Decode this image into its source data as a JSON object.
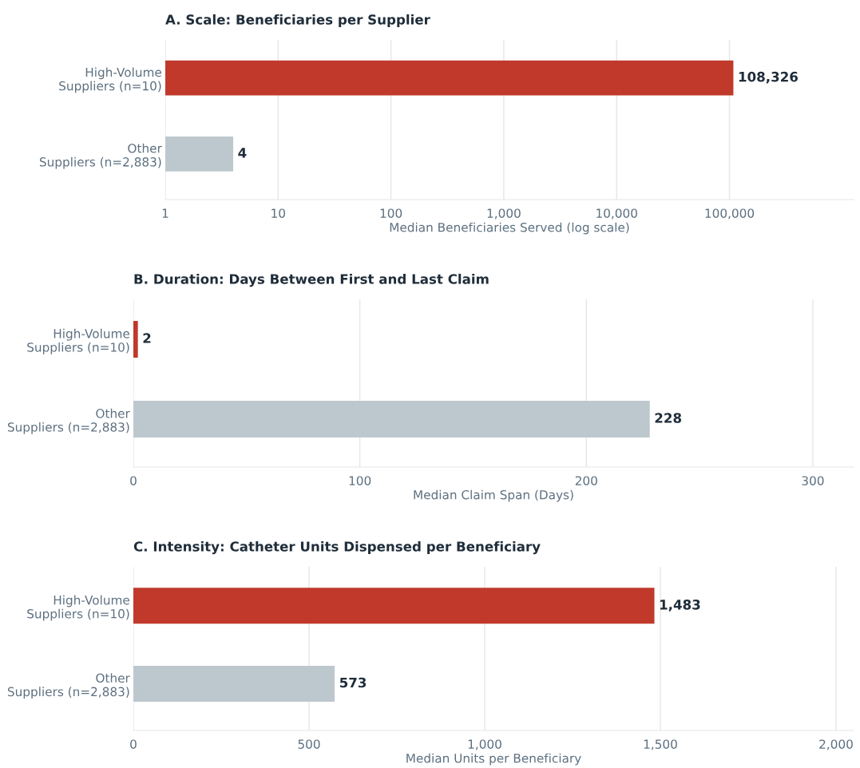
{
  "chart_data": [
    {
      "type": "bar",
      "orientation": "horizontal",
      "log": "x",
      "title": "A. Scale: Beneficiaries per Supplier",
      "xlabel": "Median Beneficiaries Served (log scale)",
      "categories": [
        "High-Volume\nSuppliers (n=10)",
        "Other\nSuppliers (n=2,883)"
      ],
      "values": [
        108326,
        4
      ],
      "colors": [
        "#c0392b",
        "#bdc8ce"
      ],
      "value_labels": [
        "108,326",
        "4"
      ],
      "xlim": [
        1,
        1260000
      ],
      "xticks": [
        {
          "value": 1,
          "label": "1"
        },
        {
          "value": 10,
          "label": "10"
        },
        {
          "value": 100,
          "label": "100"
        },
        {
          "value": 1000,
          "label": "1,000"
        },
        {
          "value": 10000,
          "label": "10,000"
        },
        {
          "value": 100000,
          "label": "100,000"
        }
      ],
      "grid": "x",
      "legend": false
    },
    {
      "type": "bar",
      "orientation": "horizontal",
      "title": "B. Duration: Days Between First and Last Claim",
      "xlabel": "Median Claim Span (Days)",
      "categories": [
        "High-Volume\nSuppliers (n=10)",
        "Other\nSuppliers (n=2,883)"
      ],
      "values": [
        2,
        228
      ],
      "colors": [
        "#c0392b",
        "#bdc8ce"
      ],
      "data_labels": true,
      "xlim": [
        0,
        318
      ],
      "xticks": [
        0,
        100,
        200,
        300
      ],
      "grid": "x",
      "legend": false
    },
    {
      "type": "bar",
      "orientation": "horizontal",
      "title": "C. Intensity: Catheter Units Dispensed per Beneficiary",
      "xlabel": "Median Units per Beneficiary",
      "categories": [
        "High-Volume\nSuppliers (n=10)",
        "Other\nSuppliers (n=2,883)"
      ],
      "values": [
        1483,
        573
      ],
      "colors": [
        "#c0392b",
        "#bdc8ce"
      ],
      "value_labels": [
        "1,483",
        "573"
      ],
      "xlim": [
        0,
        2050
      ],
      "xticks": [
        0,
        {
          "value": 500,
          "label": "500"
        },
        {
          "value": 1000,
          "label": "1,000"
        },
        {
          "value": 1500,
          "label": "1,500"
        },
        {
          "value": 2000,
          "label": "2,000"
        }
      ],
      "grid": "x",
      "legend": false
    }
  ]
}
